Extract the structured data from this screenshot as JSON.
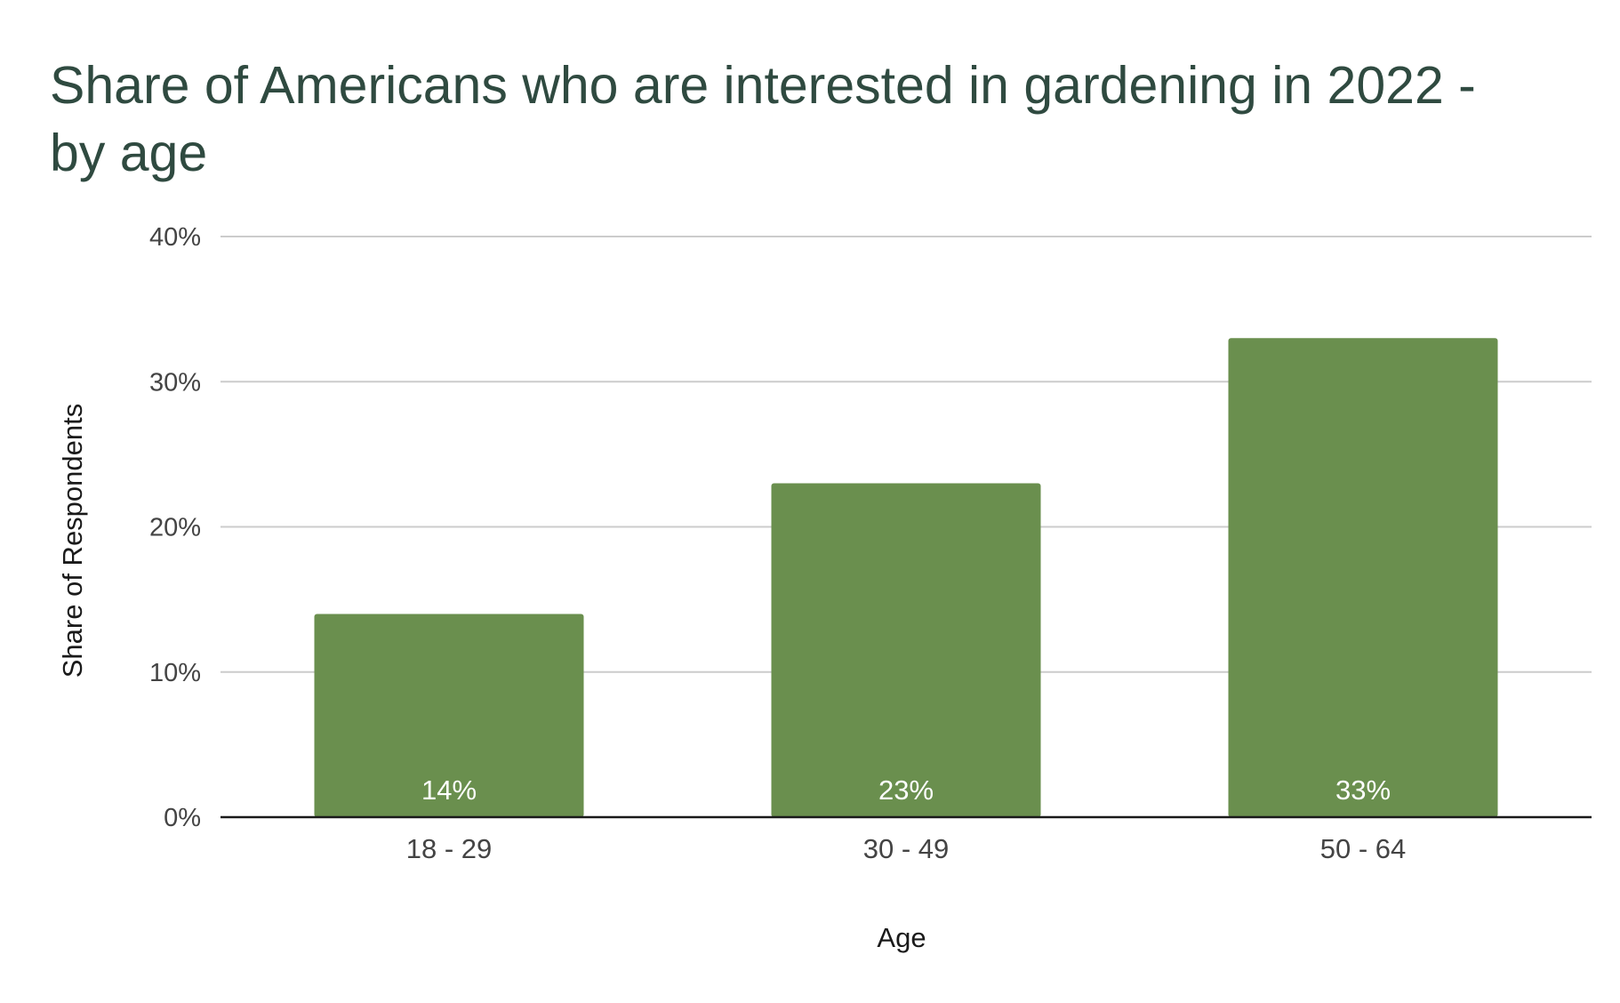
{
  "colors": {
    "bar": "#6a8f4e",
    "bar_label": "#ffffff",
    "title": "#2f4a40",
    "axis_text": "#444444",
    "axis_title": "#1a1a1a",
    "gridline": "#cccccc",
    "baseline": "#1a1a1a"
  },
  "chart_data": {
    "type": "bar",
    "title": "Share of Americans who are interested in gardening in 2022 - by age",
    "xlabel": "Age",
    "ylabel": "Share of Respondents",
    "categories": [
      "18 - 29",
      "30 - 49",
      "50 - 64"
    ],
    "values": [
      14,
      23,
      33
    ],
    "data_labels": [
      "14%",
      "23%",
      "33%"
    ],
    "ylim": [
      0,
      40
    ],
    "yticks": [
      0,
      10,
      20,
      30,
      40
    ],
    "ytick_labels": [
      "0%",
      "10%",
      "20%",
      "30%",
      "40%"
    ],
    "grid": true,
    "legend": "none"
  }
}
